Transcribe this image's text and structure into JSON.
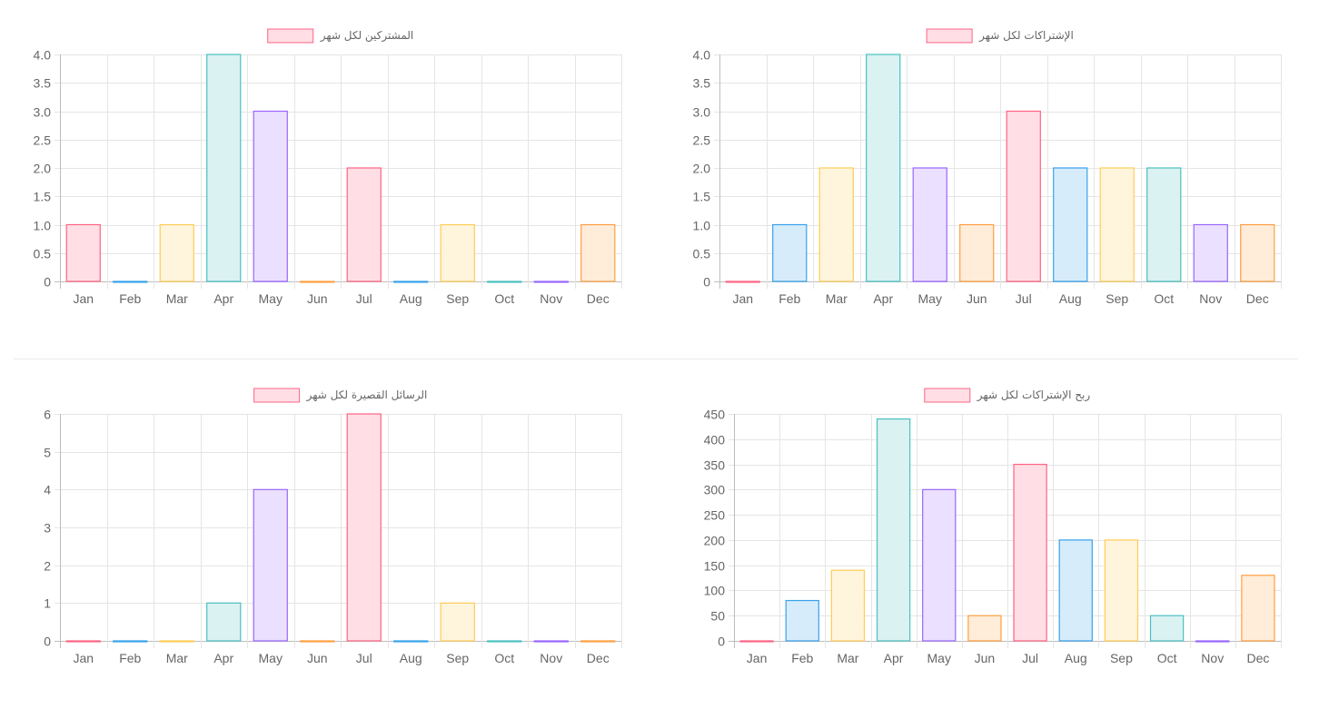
{
  "palette": {
    "pink": {
      "fill": "#ffdfe5",
      "stroke": "#ff6384"
    },
    "blue": {
      "fill": "#d7ecfb",
      "stroke": "#36a2eb"
    },
    "yellow": {
      "fill": "#fff5dd",
      "stroke": "#ffcd56"
    },
    "teal": {
      "fill": "#dbf2f2",
      "stroke": "#4bc0c0"
    },
    "purple": {
      "fill": "#ebe0ff",
      "stroke": "#9966ff"
    },
    "orange": {
      "fill": "#ffecd9",
      "stroke": "#ff9f40"
    },
    "grid": "#e5e5e5",
    "axis": "#bdbdbd",
    "text": "#666666"
  },
  "bar_color_cycle": [
    "pink",
    "blue",
    "yellow",
    "teal",
    "purple",
    "orange"
  ],
  "chart_data": [
    {
      "id": "subscribers",
      "type": "bar",
      "legend": "المشتركين لكل شهر",
      "categories": [
        "Jan",
        "Feb",
        "Mar",
        "Apr",
        "May",
        "Jun",
        "Jul",
        "Aug",
        "Sep",
        "Oct",
        "Nov",
        "Dec"
      ],
      "values": [
        1,
        0,
        1,
        4,
        3,
        0,
        2,
        0,
        1,
        0,
        0,
        1
      ],
      "ylim": [
        0,
        4
      ],
      "yticks": [
        "4.0",
        "3.5",
        "3.0",
        "2.5",
        "2.0",
        "1.5",
        "1.0",
        "0.5",
        "0"
      ],
      "grid": true,
      "legend_position": "top"
    },
    {
      "id": "subscriptions",
      "type": "bar",
      "legend": "الإشتراكات لكل شهر",
      "categories": [
        "Jan",
        "Feb",
        "Mar",
        "Apr",
        "May",
        "Jun",
        "Jul",
        "Aug",
        "Sep",
        "Oct",
        "Nov",
        "Dec"
      ],
      "values": [
        0,
        1,
        2,
        4,
        2,
        1,
        3,
        2,
        2,
        2,
        1,
        1
      ],
      "ylim": [
        0,
        4
      ],
      "yticks": [
        "4.0",
        "3.5",
        "3.0",
        "2.5",
        "2.0",
        "1.5",
        "1.0",
        "0.5",
        "0"
      ],
      "grid": true,
      "legend_position": "top"
    },
    {
      "id": "sms",
      "type": "bar",
      "legend": "الرسائل القصيرة لكل شهر",
      "categories": [
        "Jan",
        "Feb",
        "Mar",
        "Apr",
        "May",
        "Jun",
        "Jul",
        "Aug",
        "Sep",
        "Oct",
        "Nov",
        "Dec"
      ],
      "values": [
        0,
        0,
        0,
        1,
        4,
        0,
        6,
        0,
        1,
        0,
        0,
        0
      ],
      "ylim": [
        0,
        6
      ],
      "yticks": [
        "6",
        "5",
        "4",
        "3",
        "2",
        "1",
        "0"
      ],
      "grid": true,
      "legend_position": "top"
    },
    {
      "id": "profit",
      "type": "bar",
      "legend": "ربح الإشتراكات لكل شهر",
      "categories": [
        "Jan",
        "Feb",
        "Mar",
        "Apr",
        "May",
        "Jun",
        "Jul",
        "Aug",
        "Sep",
        "Oct",
        "Nov",
        "Dec"
      ],
      "values": [
        0,
        80,
        140,
        440,
        300,
        50,
        350,
        200,
        200,
        50,
        0,
        130
      ],
      "ylim": [
        0,
        450
      ],
      "yticks": [
        "450",
        "400",
        "350",
        "300",
        "250",
        "200",
        "150",
        "100",
        "50",
        "0"
      ],
      "grid": true,
      "legend_position": "top"
    }
  ]
}
